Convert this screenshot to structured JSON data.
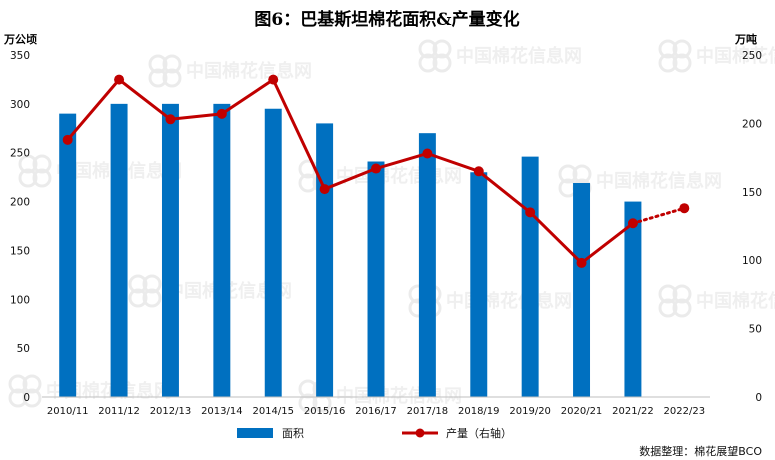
{
  "chart_data": {
    "type": "bar",
    "title": "图6：巴基斯坦棉花面积&产量变化",
    "y_left_unit": "万公顷",
    "y_right_unit": "万吨",
    "ylim_left": [
      0,
      350
    ],
    "ylim_right": [
      0,
      250
    ],
    "yticks_left": [
      "0",
      "50",
      "100",
      "150",
      "200",
      "250",
      "300",
      "350"
    ],
    "yticks_right": [
      "0",
      "50",
      "100",
      "150",
      "200",
      "250"
    ],
    "categories": [
      "2010/11",
      "2011/12",
      "2012/13",
      "2013/14",
      "2014/15",
      "2015/16",
      "2016/17",
      "2017/18",
      "2018/19",
      "2019/20",
      "2020/21",
      "2021/22",
      "2022/23"
    ],
    "series": [
      {
        "name": "面积",
        "type": "bar",
        "axis": "left",
        "color": "#0070C0",
        "values": [
          290,
          300,
          300,
          300,
          295,
          280,
          241,
          270,
          230,
          246,
          219,
          200,
          null
        ]
      },
      {
        "name": "产量（右轴）",
        "type": "line",
        "axis": "right",
        "color": "#C00000",
        "values": [
          188,
          232,
          203,
          207,
          232,
          152,
          167,
          178,
          165,
          135,
          98,
          127,
          138
        ],
        "forecast_from_index": 11
      }
    ],
    "legend_position": "bottom",
    "grid": false
  },
  "source": "数据整理：棉花展望BCO",
  "watermark": "中国棉花信息网 www.cottonchina.org.cn"
}
